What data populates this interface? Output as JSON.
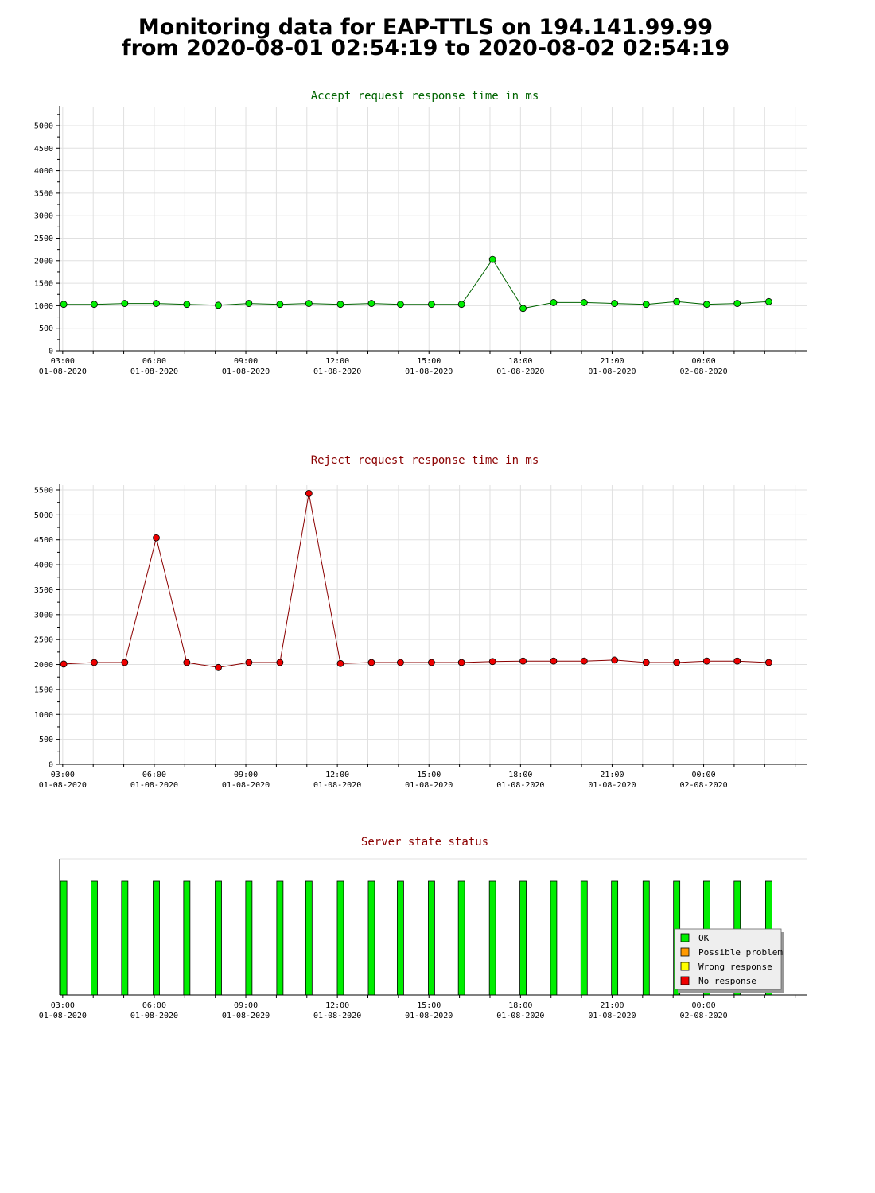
{
  "page": {
    "title_line1": "Monitoring data for EAP-TTLS on 194.141.99.99",
    "title_line2": "from 2020-08-01 02:54:19 to 2020-08-02 02:54:19"
  },
  "colors": {
    "accept_title": "#006400",
    "reject_title": "#8b0000",
    "status_title": "#8b0000",
    "accept_line": "#006400",
    "reject_line": "#8b0000",
    "ok": "#00ee00",
    "possible_problem": "#ff9900",
    "wrong_response": "#ffff00",
    "no_response": "#ee0000",
    "grid": "#e0e0e0"
  },
  "chart_data": [
    {
      "id": "accept",
      "type": "line",
      "title": "Accept request response time in ms",
      "xlabel": "",
      "ylabel": "",
      "ylim": [
        0,
        5300
      ],
      "yticks": [
        0,
        500,
        1000,
        1500,
        2000,
        2500,
        3000,
        3500,
        4000,
        4500,
        5000
      ],
      "xlim": [
        "2020-08-01 02:54",
        "2020-08-02 03:24"
      ],
      "xtick_labels": [
        {
          "time": "03:00",
          "date": "01-08-2020",
          "at": "2020-08-01 03:00"
        },
        {
          "time": "06:00",
          "date": "01-08-2020",
          "at": "2020-08-01 06:00"
        },
        {
          "time": "09:00",
          "date": "01-08-2020",
          "at": "2020-08-01 09:00"
        },
        {
          "time": "12:00",
          "date": "01-08-2020",
          "at": "2020-08-01 12:00"
        },
        {
          "time": "15:00",
          "date": "01-08-2020",
          "at": "2020-08-01 15:00"
        },
        {
          "time": "18:00",
          "date": "01-08-2020",
          "at": "2020-08-01 18:00"
        },
        {
          "time": "21:00",
          "date": "01-08-2020",
          "at": "2020-08-01 21:00"
        },
        {
          "time": "00:00",
          "date": "02-08-2020",
          "at": "2020-08-02 00:00"
        }
      ],
      "grid": true,
      "series": [
        {
          "x": [
            "2020-08-01 03:02",
            "2020-08-01 04:02",
            "2020-08-01 05:02",
            "2020-08-01 06:04",
            "2020-08-01 07:04",
            "2020-08-01 08:06",
            "2020-08-01 09:06",
            "2020-08-01 10:07",
            "2020-08-01 11:04",
            "2020-08-01 12:06",
            "2020-08-01 13:07",
            "2020-08-01 14:04",
            "2020-08-01 15:05",
            "2020-08-01 16:04",
            "2020-08-01 17:05",
            "2020-08-01 18:05",
            "2020-08-01 19:05",
            "2020-08-01 20:05",
            "2020-08-01 21:05",
            "2020-08-01 22:07",
            "2020-08-01 23:07",
            "2020-08-02 00:06",
            "2020-08-02 01:06",
            "2020-08-02 02:08"
          ],
          "values": [
            1030,
            1030,
            1050,
            1050,
            1030,
            1010,
            1050,
            1030,
            1050,
            1030,
            1050,
            1030,
            1030,
            1030,
            2030,
            940,
            1070,
            1070,
            1050,
            1030,
            1090,
            1030,
            1050,
            1090
          ]
        }
      ]
    },
    {
      "id": "reject",
      "type": "line",
      "title": "Reject request response time in ms",
      "xlabel": "",
      "ylabel": "",
      "ylim": [
        0,
        5500
      ],
      "yticks": [
        0,
        500,
        1000,
        1500,
        2000,
        2500,
        3000,
        3500,
        4000,
        4500,
        5000,
        5500
      ],
      "xlim": [
        "2020-08-01 02:54",
        "2020-08-02 03:24"
      ],
      "xtick_labels": [
        {
          "time": "03:00",
          "date": "01-08-2020",
          "at": "2020-08-01 03:00"
        },
        {
          "time": "06:00",
          "date": "01-08-2020",
          "at": "2020-08-01 06:00"
        },
        {
          "time": "09:00",
          "date": "01-08-2020",
          "at": "2020-08-01 09:00"
        },
        {
          "time": "12:00",
          "date": "01-08-2020",
          "at": "2020-08-01 12:00"
        },
        {
          "time": "15:00",
          "date": "01-08-2020",
          "at": "2020-08-01 15:00"
        },
        {
          "time": "18:00",
          "date": "01-08-2020",
          "at": "2020-08-01 18:00"
        },
        {
          "time": "21:00",
          "date": "01-08-2020",
          "at": "2020-08-01 21:00"
        },
        {
          "time": "00:00",
          "date": "02-08-2020",
          "at": "2020-08-02 00:00"
        }
      ],
      "grid": true,
      "series": [
        {
          "x": [
            "2020-08-01 03:02",
            "2020-08-01 04:02",
            "2020-08-01 05:02",
            "2020-08-01 06:04",
            "2020-08-01 07:04",
            "2020-08-01 08:06",
            "2020-08-01 09:06",
            "2020-08-01 10:07",
            "2020-08-01 11:04",
            "2020-08-01 12:06",
            "2020-08-01 13:07",
            "2020-08-01 14:04",
            "2020-08-01 15:05",
            "2020-08-01 16:04",
            "2020-08-01 17:05",
            "2020-08-01 18:05",
            "2020-08-01 19:05",
            "2020-08-01 20:05",
            "2020-08-01 21:05",
            "2020-08-01 22:07",
            "2020-08-01 23:07",
            "2020-08-02 00:06",
            "2020-08-02 01:06",
            "2020-08-02 02:08"
          ],
          "values": [
            2010,
            2040,
            2040,
            4540,
            2040,
            1940,
            2040,
            2040,
            5430,
            2020,
            2040,
            2040,
            2040,
            2040,
            2060,
            2070,
            2070,
            2070,
            2090,
            2040,
            2040,
            2070,
            2070,
            2040
          ]
        }
      ]
    },
    {
      "id": "status",
      "type": "bar",
      "title": "Server state status",
      "xlim": [
        "2020-08-01 02:54",
        "2020-08-02 03:24"
      ],
      "xtick_labels": [
        {
          "time": "03:00",
          "date": "01-08-2020",
          "at": "2020-08-01 03:00"
        },
        {
          "time": "06:00",
          "date": "01-08-2020",
          "at": "2020-08-01 06:00"
        },
        {
          "time": "09:00",
          "date": "01-08-2020",
          "at": "2020-08-01 09:00"
        },
        {
          "time": "12:00",
          "date": "01-08-2020",
          "at": "2020-08-01 12:00"
        },
        {
          "time": "15:00",
          "date": "01-08-2020",
          "at": "2020-08-01 15:00"
        },
        {
          "time": "18:00",
          "date": "01-08-2020",
          "at": "2020-08-01 18:00"
        },
        {
          "time": "21:00",
          "date": "01-08-2020",
          "at": "2020-08-01 21:00"
        },
        {
          "time": "00:00",
          "date": "02-08-2020",
          "at": "2020-08-02 00:00"
        }
      ],
      "legend_position": "bottom-right",
      "legend": [
        {
          "label": "OK",
          "color": "#00ee00"
        },
        {
          "label": "Possible problem",
          "color": "#ff9900"
        },
        {
          "label": "Wrong response",
          "color": "#ffff00"
        },
        {
          "label": "No response",
          "color": "#ee0000"
        }
      ],
      "series": [
        {
          "name": "OK",
          "x": [
            "2020-08-01 03:02",
            "2020-08-01 04:02",
            "2020-08-01 05:02",
            "2020-08-01 06:04",
            "2020-08-01 07:04",
            "2020-08-01 08:06",
            "2020-08-01 09:06",
            "2020-08-01 10:07",
            "2020-08-01 11:04",
            "2020-08-01 12:06",
            "2020-08-01 13:07",
            "2020-08-01 14:04",
            "2020-08-01 15:05",
            "2020-08-01 16:04",
            "2020-08-01 17:05",
            "2020-08-01 18:05",
            "2020-08-01 19:05",
            "2020-08-01 20:05",
            "2020-08-01 21:05",
            "2020-08-01 22:07",
            "2020-08-01 23:07",
            "2020-08-02 00:06",
            "2020-08-02 01:06",
            "2020-08-02 02:08"
          ],
          "values": [
            1,
            1,
            1,
            1,
            1,
            1,
            1,
            1,
            1,
            1,
            1,
            1,
            1,
            1,
            1,
            1,
            1,
            1,
            1,
            1,
            1,
            1,
            1,
            1
          ]
        }
      ]
    }
  ]
}
